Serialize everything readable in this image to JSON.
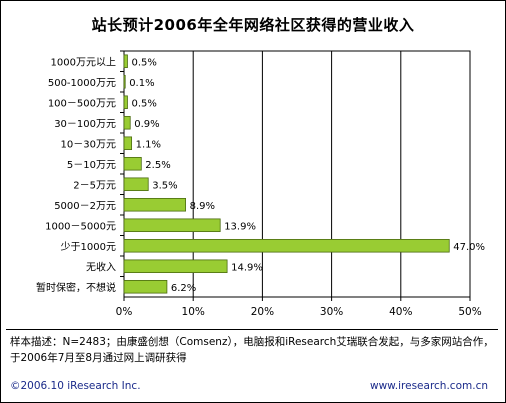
{
  "chart_data": {
    "type": "bar",
    "orientation": "horizontal",
    "title": "站长预计2006年全年网络社区获得的营业收入",
    "categories": [
      "1000万元以上",
      "500-1000万元",
      "100－500万元",
      "30－100万元",
      "10－30万元",
      "5－10万元",
      "2－5万元",
      "5000－2万元",
      "1000－5000元",
      "少于1000元",
      "无收入",
      "暂时保密，不想说"
    ],
    "values": [
      0.5,
      0.1,
      0.5,
      0.9,
      1.1,
      2.5,
      3.5,
      8.9,
      13.9,
      47.0,
      14.9,
      6.2
    ],
    "value_labels": [
      "0.5%",
      "0.1%",
      "0.5%",
      "0.9%",
      "1.1%",
      "2.5%",
      "3.5%",
      "8.9%",
      "13.9%",
      "47.0%",
      "14.9%",
      "6.2%"
    ],
    "xlim": [
      0,
      50
    ],
    "xticks": [
      "0%",
      "10%",
      "20%",
      "30%",
      "40%",
      "50%"
    ],
    "grid": true,
    "bar_color": "#99cc33",
    "bar_edge": "#4a6a10"
  },
  "note": "样本描述：N=2483；由康盛创想（Comsenz），电脑报和iResearch艾瑞联合发起，与多家网站合作，于2006年7月至8月通过网上调研获得",
  "footer": {
    "copyright": "©2006.10 iResearch Inc.",
    "website": "www.iresearch.com.cn"
  }
}
